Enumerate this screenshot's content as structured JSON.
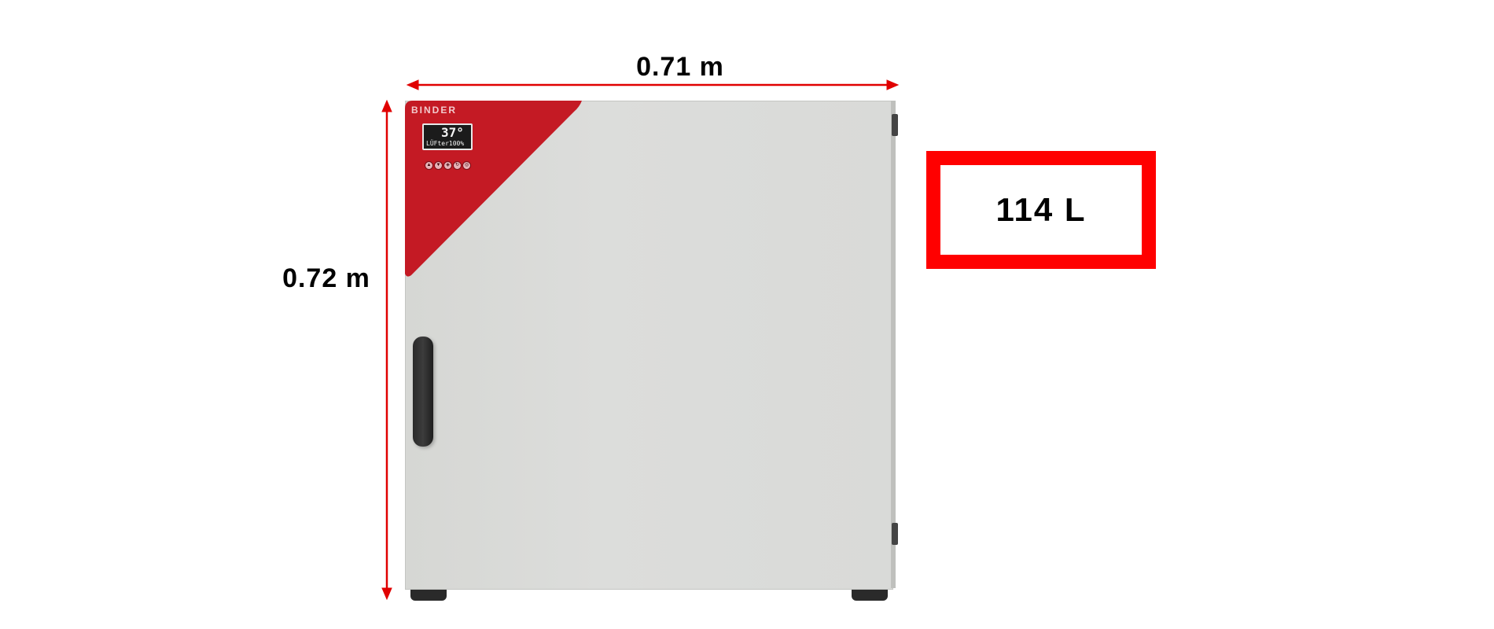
{
  "dimensions": {
    "width_label": "0.71 m",
    "height_label": "0.72 m"
  },
  "volume": {
    "label": "114 L"
  },
  "product": {
    "brand": "BINDER",
    "display_temperature": "37°",
    "display_line": "LÜFter100%",
    "keys": [
      "▲",
      "▼",
      "◈",
      "↻",
      "◎"
    ]
  },
  "colors": {
    "accent_red": "#ff0000",
    "panel_red": "#c41a24",
    "body_gray": "#d9dad8"
  }
}
